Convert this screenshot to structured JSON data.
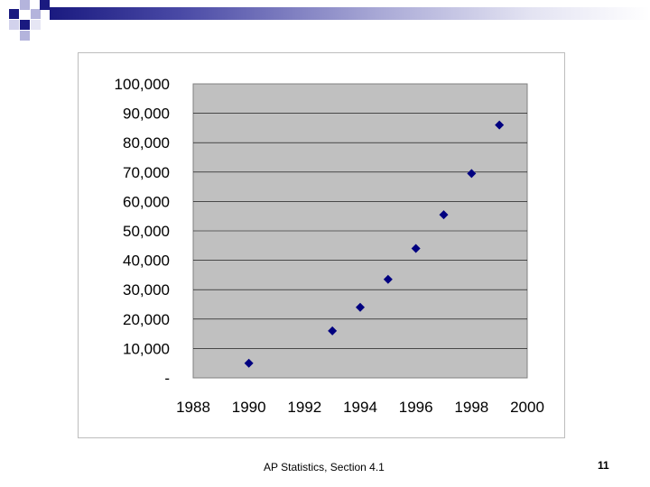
{
  "slide": {
    "footer": "AP Statistics, Section 4.1",
    "page_number": "11",
    "accent_color": "#1a1a80"
  },
  "chart_data": {
    "type": "scatter",
    "title": "",
    "xlabel": "",
    "ylabel": "",
    "xlim": [
      1988,
      2000
    ],
    "ylim": [
      0,
      100000
    ],
    "x_ticks": [
      "1988",
      "1990",
      "1992",
      "1994",
      "1996",
      "1998",
      "2000"
    ],
    "y_ticks": [
      "-",
      "10,000",
      "20,000",
      "30,000",
      "40,000",
      "50,000",
      "60,000",
      "70,000",
      "80,000",
      "90,000",
      "100,000"
    ],
    "grid": true,
    "plot_background": "#c0c0c0",
    "marker_color": "#000080",
    "marker": "diamond",
    "series": [
      {
        "x": [
          1990,
          1993,
          1994,
          1995,
          1996,
          1997,
          1998,
          1999
        ],
        "y": [
          5000,
          16000,
          24000,
          33500,
          44000,
          55500,
          69500,
          86000
        ]
      }
    ]
  }
}
